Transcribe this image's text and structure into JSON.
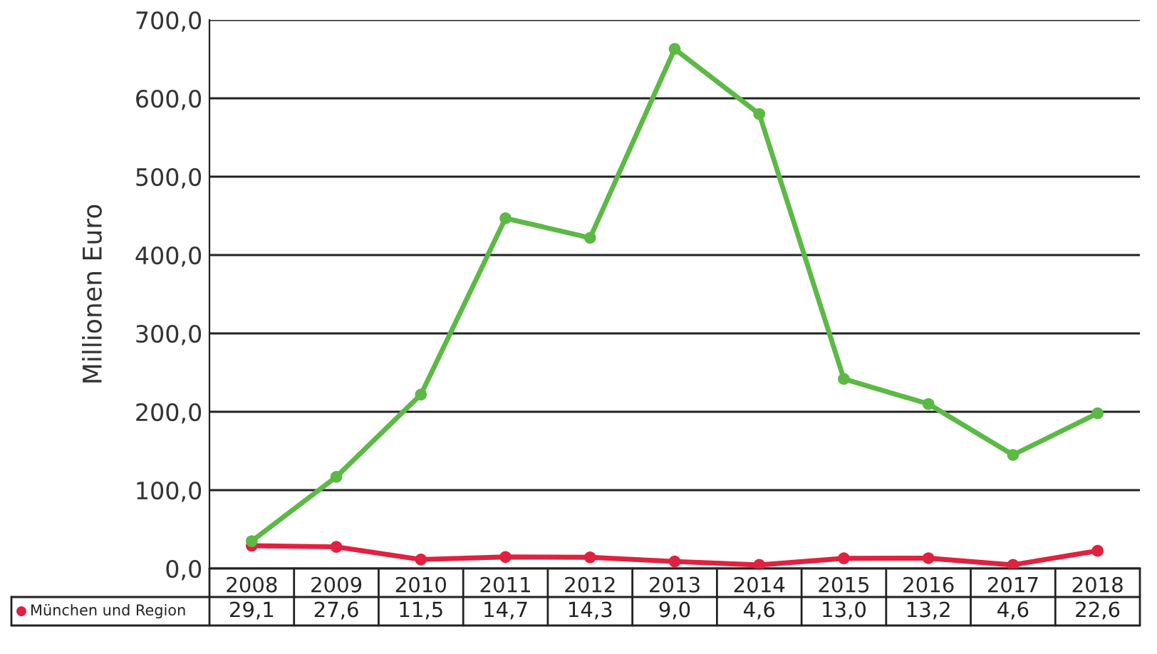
{
  "chart_data": {
    "type": "line",
    "ylabel": "Millionen Euro",
    "categories": [
      "2008",
      "2009",
      "2010",
      "2011",
      "2012",
      "2013",
      "2014",
      "2015",
      "2016",
      "2017",
      "2018"
    ],
    "series": [
      {
        "color": "#5cb946",
        "values": [
          35,
          117,
          222,
          447,
          422,
          663,
          580,
          242,
          210,
          145,
          198
        ]
      },
      {
        "name": "München und Region",
        "color": "#e0213f",
        "values": [
          29.1,
          27.6,
          11.5,
          14.7,
          14.3,
          9.0,
          4.6,
          13.0,
          13.2,
          4.6,
          22.6
        ],
        "value_labels": [
          "29,1",
          "27,6",
          "11,5",
          "14,7",
          "14,3",
          "9,0",
          "4,6",
          "13,0",
          "13,2",
          "4,6",
          "22,6"
        ]
      }
    ],
    "ylim": [
      0,
      700
    ],
    "yticks": [
      {
        "value": 0,
        "label": "0,0"
      },
      {
        "value": 100,
        "label": "100,0"
      },
      {
        "value": 200,
        "label": "200,0"
      },
      {
        "value": 300,
        "label": "300,0"
      },
      {
        "value": 400,
        "label": "400,0"
      },
      {
        "value": 500,
        "label": "500,0"
      },
      {
        "value": 600,
        "label": "600,0"
      },
      {
        "value": 700,
        "label": "700,0"
      }
    ],
    "grid": "y",
    "marker": "circle",
    "line_style": "solid"
  }
}
